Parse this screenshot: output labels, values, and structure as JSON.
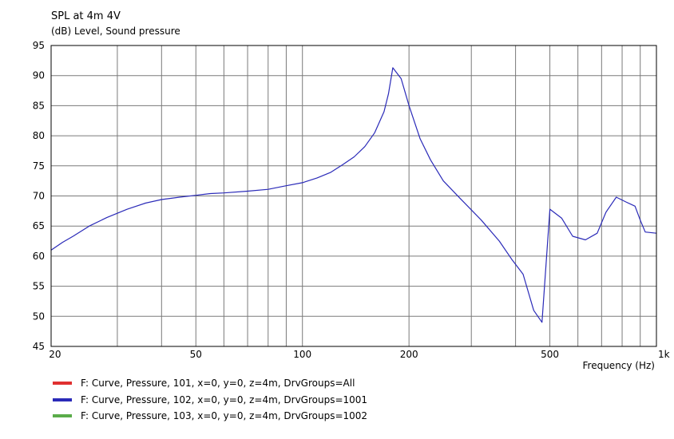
{
  "header": {
    "title": "SPL at 4m 4V",
    "subtitle": "(dB)  Level, Sound pressure"
  },
  "chart_data": {
    "type": "line",
    "title": "SPL at 4m 4V",
    "ylabel": "(dB)  Level, Sound pressure",
    "xlabel": "Frequency  (Hz)",
    "x_scale": "log",
    "xlim": [
      19.5,
      1000
    ],
    "ylim": [
      45,
      95
    ],
    "grid": true,
    "y_ticks": [
      45,
      50,
      55,
      60,
      65,
      70,
      75,
      80,
      85,
      90,
      95
    ],
    "x_tick_labels": [
      {
        "value": 20,
        "label": "20"
      },
      {
        "value": 50,
        "label": "50"
      },
      {
        "value": 100,
        "label": "100"
      },
      {
        "value": 200,
        "label": "200"
      },
      {
        "value": 500,
        "label": "500"
      },
      {
        "value": 1000,
        "label": "1k"
      }
    ],
    "x_gridlines": [
      30,
      40,
      50,
      60,
      70,
      80,
      90,
      100,
      200,
      300,
      400,
      500,
      600,
      700,
      800,
      900
    ],
    "legend_position": "bottom-left",
    "series": [
      {
        "name": "F: Curve, Pressure, 101, x=0, y=0, z=4m, DrvGroups=All",
        "color": "#e03030",
        "x": [],
        "y": []
      },
      {
        "name": "F: Curve, Pressure, 102, x=0, y=0, z=4m, DrvGroups=1001",
        "color": "#2a2ab8",
        "x": [
          19.5,
          21,
          22.5,
          25,
          28,
          32,
          36,
          40,
          45,
          50,
          55,
          60,
          70,
          80,
          90,
          100,
          110,
          120,
          130,
          140,
          150,
          160,
          170,
          175,
          180,
          190,
          200,
          215,
          230,
          250,
          280,
          320,
          360,
          390,
          420,
          450,
          475,
          500,
          540,
          580,
          630,
          680,
          720,
          770,
          820,
          870,
          900,
          930,
          1000
        ],
        "y": [
          61.0,
          62.3,
          63.3,
          65.0,
          66.4,
          67.8,
          68.8,
          69.4,
          69.8,
          70.1,
          70.4,
          70.5,
          70.8,
          71.1,
          71.7,
          72.2,
          73.0,
          73.9,
          75.2,
          76.5,
          78.2,
          80.5,
          84.0,
          87.0,
          91.3,
          89.5,
          85.0,
          79.5,
          76.0,
          72.5,
          69.5,
          66.0,
          62.5,
          59.5,
          57.0,
          51.0,
          49.0,
          67.8,
          66.3,
          63.3,
          62.7,
          63.8,
          67.3,
          69.8,
          69.0,
          68.3,
          66.0,
          64.0,
          63.8
        ]
      },
      {
        "name": "F: Curve, Pressure, 103, x=0, y=0, z=4m, DrvGroups=1002",
        "color": "#5aac4a",
        "x": [],
        "y": []
      }
    ]
  }
}
